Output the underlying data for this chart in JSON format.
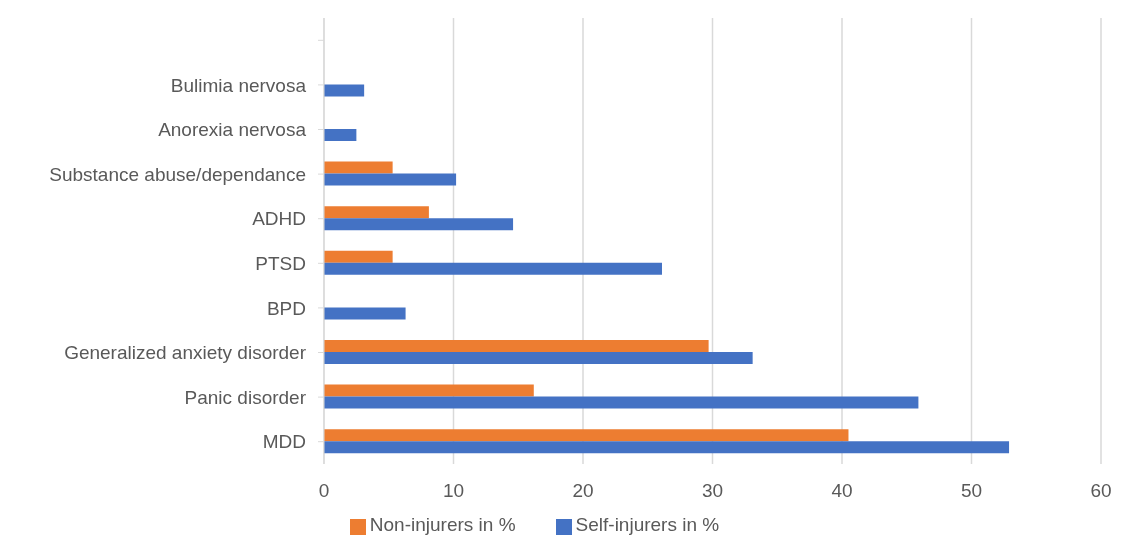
{
  "chart_data": {
    "type": "bar",
    "orientation": "horizontal",
    "categories": [
      null,
      "Bulimia nervosa",
      "Anorexia nervosa",
      "Substance abuse/dependance",
      "ADHD",
      "PTSD",
      "BPD",
      "Generalized anxiety disorder",
      "Panic disorder",
      "MDD"
    ],
    "series": [
      {
        "name": "Non-injurers in %",
        "color": "#ed7d31",
        "values": [
          null,
          null,
          null,
          5.3,
          8.1,
          5.3,
          null,
          29.7,
          16.2,
          40.5
        ]
      },
      {
        "name": "Self-injurers in %",
        "color": "#4472c4",
        "values": [
          null,
          3.1,
          2.5,
          10.2,
          14.6,
          26.1,
          6.3,
          33.1,
          45.9,
          52.9
        ]
      }
    ],
    "xlim": [
      0,
      60
    ],
    "xticks": [
      0,
      10,
      20,
      30,
      40,
      50,
      60
    ],
    "grid": "x",
    "legend": "bottom"
  }
}
